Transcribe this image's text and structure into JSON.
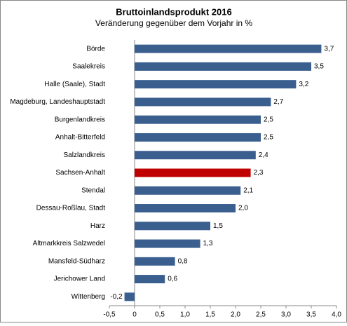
{
  "chart_data": {
    "type": "bar",
    "orientation": "horizontal",
    "title": "Bruttoinlandsprodukt  2016",
    "subtitle": "Veränderung gegenüber dem Vorjahr in %",
    "categories": [
      "Börde",
      "Saalekreis",
      "Halle (Saale), Stadt",
      "Magdeburg, Landeshauptstadt",
      "Burgenlandkreis",
      "Anhalt-Bitterfeld",
      "Salzlandkreis",
      "Sachsen-Anhalt",
      "Stendal",
      "Dessau-Roßlau, Stadt",
      "Harz",
      "Altmarkkreis Salzwedel",
      "Mansfeld-Südharz",
      "Jerichower Land",
      "Wittenberg"
    ],
    "values": [
      3.7,
      3.5,
      3.2,
      2.7,
      2.5,
      2.5,
      2.4,
      2.3,
      2.1,
      2.0,
      1.5,
      1.3,
      0.8,
      0.6,
      -0.2
    ],
    "value_labels": [
      "3,7",
      "3,5",
      "3,2",
      "2,7",
      "2,5",
      "2,5",
      "2,4",
      "2,3",
      "2,1",
      "2,0",
      "1,5",
      "1,3",
      "0,8",
      "0,6",
      "-0,2"
    ],
    "colors": [
      "#3a5f8f",
      "#3a5f8f",
      "#3a5f8f",
      "#3a5f8f",
      "#3a5f8f",
      "#3a5f8f",
      "#3a5f8f",
      "#c00000",
      "#3a5f8f",
      "#3a5f8f",
      "#3a5f8f",
      "#3a5f8f",
      "#3a5f8f",
      "#3a5f8f",
      "#3a5f8f"
    ],
    "xlim": [
      -0.5,
      4.0
    ],
    "xticks": [
      {
        "value": -0.5,
        "label": "-0,5"
      },
      0,
      {
        "value": 0.5,
        "label": "0,5"
      },
      {
        "value": 1.0,
        "label": "1,0"
      },
      {
        "value": 1.5,
        "label": "1,5"
      },
      {
        "value": 2.0,
        "label": "2,0"
      },
      {
        "value": 2.5,
        "label": "2,5"
      },
      {
        "value": 3.0,
        "label": "3,0"
      },
      {
        "value": 3.5,
        "label": "3,5"
      },
      {
        "value": 4.0,
        "label": "4,0"
      }
    ],
    "grid": false
  }
}
